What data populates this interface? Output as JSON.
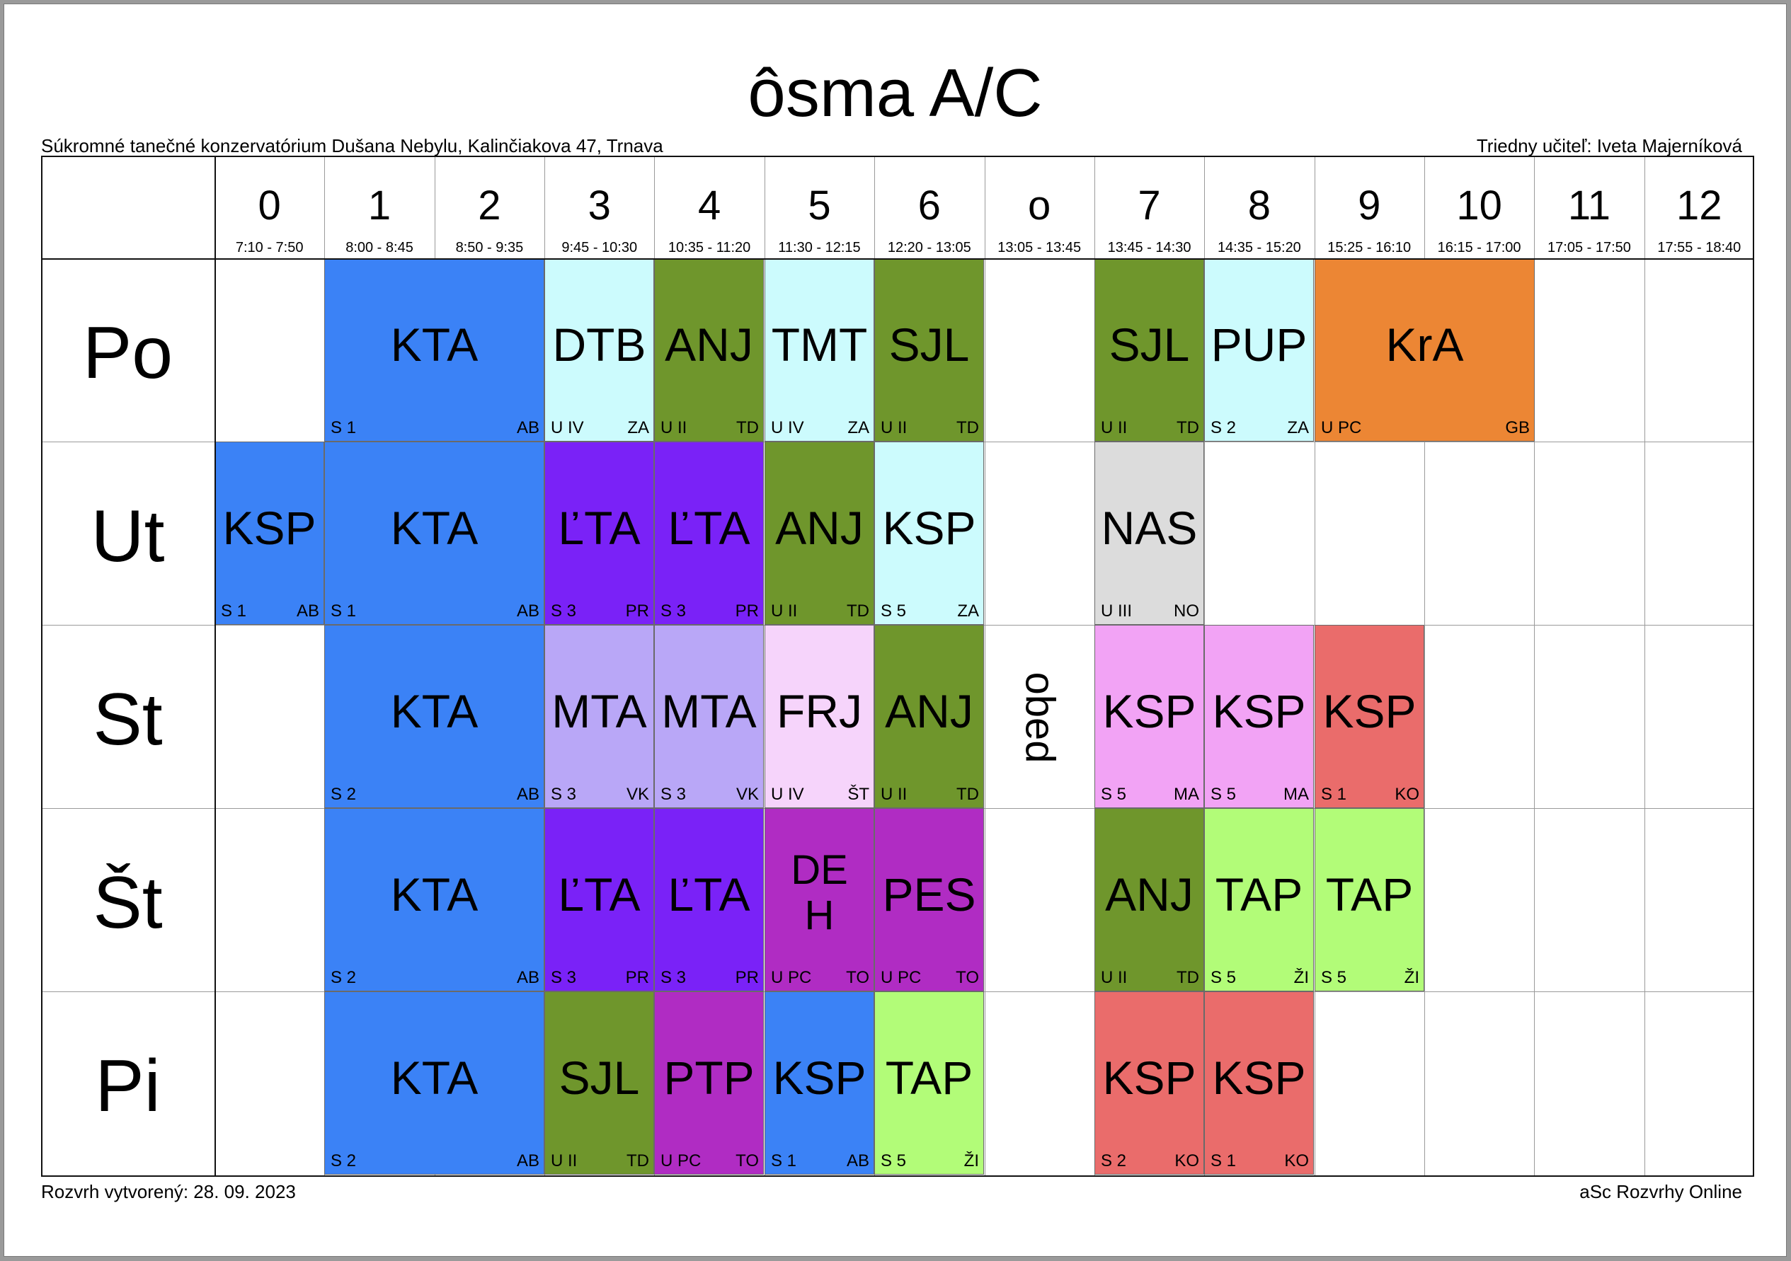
{
  "title": "ôsma A/C",
  "school": "Súkromné tanečné konzervatórium Dušana Nebylu, Kalinčiakova 47, Trnava",
  "homeroom_teacher": "Triedny učiteľ: Iveta Majerníková",
  "footer": {
    "created": "Rozvrh vytvorený: 28. 09. 2023",
    "brand": "aSc Rozvrhy Online"
  },
  "lunch_label": "obed",
  "periods": [
    {
      "num": "0",
      "time": "7:10 - 7:50"
    },
    {
      "num": "1",
      "time": "8:00 - 8:45"
    },
    {
      "num": "2",
      "time": "8:50 - 9:35"
    },
    {
      "num": "3",
      "time": "9:45 - 10:30"
    },
    {
      "num": "4",
      "time": "10:35 - 11:20"
    },
    {
      "num": "5",
      "time": "11:30 - 12:15"
    },
    {
      "num": "6",
      "time": "12:20 - 13:05"
    },
    {
      "num": "o",
      "time": "13:05 - 13:45"
    },
    {
      "num": "7",
      "time": "13:45 - 14:30"
    },
    {
      "num": "8",
      "time": "14:35 - 15:20"
    },
    {
      "num": "9",
      "time": "15:25 - 16:10"
    },
    {
      "num": "10",
      "time": "16:15 - 17:00"
    },
    {
      "num": "11",
      "time": "17:05 - 17:50"
    },
    {
      "num": "12",
      "time": "17:55 - 18:40"
    }
  ],
  "days": [
    "Po",
    "Ut",
    "St",
    "Št",
    "Pi"
  ],
  "colors": {
    "blue": "#3b82f6",
    "cyan": "#ccfbfd",
    "olive": "#6f962c",
    "orange": "#ec8634",
    "violet": "#7a22f7",
    "lavender": "#b9a7f7",
    "pink_light": "#f6d4fb",
    "pink": "#f2a3f5",
    "red": "#ea6c6b",
    "grey": "#dcdcdc",
    "purple": "#b02cc3",
    "green_light": "#b2fc78"
  },
  "lessons": [
    {
      "day": 0,
      "start": 1,
      "span": 2,
      "subject": "KTA",
      "group": "S 1",
      "teacher": "AB",
      "color": "#3b82f6"
    },
    {
      "day": 0,
      "start": 3,
      "span": 1,
      "subject": "DTB",
      "group": "U IV",
      "teacher": "ZA",
      "color": "#ccfbfd"
    },
    {
      "day": 0,
      "start": 4,
      "span": 1,
      "subject": "ANJ",
      "group": "U II",
      "teacher": "TD",
      "color": "#6f962c"
    },
    {
      "day": 0,
      "start": 5,
      "span": 1,
      "subject": "TMT",
      "group": "U IV",
      "teacher": "ZA",
      "color": "#ccfbfd"
    },
    {
      "day": 0,
      "start": 6,
      "span": 1,
      "subject": "SJL",
      "group": "U II",
      "teacher": "TD",
      "color": "#6f962c"
    },
    {
      "day": 0,
      "start": 8,
      "span": 1,
      "subject": "SJL",
      "group": "U II",
      "teacher": "TD",
      "color": "#6f962c"
    },
    {
      "day": 0,
      "start": 9,
      "span": 1,
      "subject": "PUP",
      "group": "S 2",
      "teacher": "ZA",
      "color": "#ccfbfd"
    },
    {
      "day": 0,
      "start": 10,
      "span": 2,
      "subject": "KrA",
      "group": "U PC",
      "teacher": "GB",
      "color": "#ec8634"
    },
    {
      "day": 1,
      "start": 0,
      "span": 1,
      "subject": "KSP",
      "group": "S 1",
      "teacher": "AB",
      "color": "#3b82f6"
    },
    {
      "day": 1,
      "start": 1,
      "span": 2,
      "subject": "KTA",
      "group": "S 1",
      "teacher": "AB",
      "color": "#3b82f6"
    },
    {
      "day": 1,
      "start": 3,
      "span": 1,
      "subject": "ĽTA",
      "group": "S 3",
      "teacher": "PR",
      "color": "#7a22f7"
    },
    {
      "day": 1,
      "start": 4,
      "span": 1,
      "subject": "ĽTA",
      "group": "S 3",
      "teacher": "PR",
      "color": "#7a22f7"
    },
    {
      "day": 1,
      "start": 5,
      "span": 1,
      "subject": "ANJ",
      "group": "U II",
      "teacher": "TD",
      "color": "#6f962c"
    },
    {
      "day": 1,
      "start": 6,
      "span": 1,
      "subject": "KSP",
      "group": "S 5",
      "teacher": "ZA",
      "color": "#ccfbfd"
    },
    {
      "day": 1,
      "start": 8,
      "span": 1,
      "subject": "NAS",
      "group": "U III",
      "teacher": "NO",
      "color": "#dcdcdc"
    },
    {
      "day": 2,
      "start": 1,
      "span": 2,
      "subject": "KTA",
      "group": "S 2",
      "teacher": "AB",
      "color": "#3b82f6"
    },
    {
      "day": 2,
      "start": 3,
      "span": 1,
      "subject": "MTA",
      "group": "S 3",
      "teacher": "VK",
      "color": "#b9a7f7"
    },
    {
      "day": 2,
      "start": 4,
      "span": 1,
      "subject": "MTA",
      "group": "S 3",
      "teacher": "VK",
      "color": "#b9a7f7"
    },
    {
      "day": 2,
      "start": 5,
      "span": 1,
      "subject": "FRJ",
      "group": "U IV",
      "teacher": "ŠT",
      "color": "#f6d4fb"
    },
    {
      "day": 2,
      "start": 6,
      "span": 1,
      "subject": "ANJ",
      "group": "U II",
      "teacher": "TD",
      "color": "#6f962c"
    },
    {
      "day": 2,
      "start": 8,
      "span": 1,
      "subject": "KSP",
      "group": "S 5",
      "teacher": "MA",
      "color": "#f2a3f5"
    },
    {
      "day": 2,
      "start": 9,
      "span": 1,
      "subject": "KSP",
      "group": "S 5",
      "teacher": "MA",
      "color": "#f2a3f5"
    },
    {
      "day": 2,
      "start": 10,
      "span": 1,
      "subject": "KSP",
      "group": "S 1",
      "teacher": "KO",
      "color": "#ea6c6b"
    },
    {
      "day": 3,
      "start": 1,
      "span": 2,
      "subject": "KTA",
      "group": "S 2",
      "teacher": "AB",
      "color": "#3b82f6"
    },
    {
      "day": 3,
      "start": 3,
      "span": 1,
      "subject": "ĽTA",
      "group": "S 3",
      "teacher": "PR",
      "color": "#7a22f7"
    },
    {
      "day": 3,
      "start": 4,
      "span": 1,
      "subject": "ĽTA",
      "group": "S 3",
      "teacher": "PR",
      "color": "#7a22f7"
    },
    {
      "day": 3,
      "start": 5,
      "span": 1,
      "subject": "DEH",
      "lines": [
        "DE",
        "H"
      ],
      "group": "U PC",
      "teacher": "TO",
      "color": "#b02cc3"
    },
    {
      "day": 3,
      "start": 6,
      "span": 1,
      "subject": "PES",
      "group": "U PC",
      "teacher": "TO",
      "color": "#b02cc3"
    },
    {
      "day": 3,
      "start": 8,
      "span": 1,
      "subject": "ANJ",
      "group": "U II",
      "teacher": "TD",
      "color": "#6f962c"
    },
    {
      "day": 3,
      "start": 9,
      "span": 1,
      "subject": "TAP",
      "group": "S 5",
      "teacher": "ŽI",
      "color": "#b2fc78"
    },
    {
      "day": 3,
      "start": 10,
      "span": 1,
      "subject": "TAP",
      "group": "S 5",
      "teacher": "ŽI",
      "color": "#b2fc78"
    },
    {
      "day": 4,
      "start": 1,
      "span": 2,
      "subject": "KTA",
      "group": "S 2",
      "teacher": "AB",
      "color": "#3b82f6"
    },
    {
      "day": 4,
      "start": 3,
      "span": 1,
      "subject": "SJL",
      "group": "U II",
      "teacher": "TD",
      "color": "#6f962c"
    },
    {
      "day": 4,
      "start": 4,
      "span": 1,
      "subject": "PTP",
      "group": "U PC",
      "teacher": "TO",
      "color": "#b02cc3"
    },
    {
      "day": 4,
      "start": 5,
      "span": 1,
      "subject": "KSP",
      "group": "S 1",
      "teacher": "AB",
      "color": "#3b82f6"
    },
    {
      "day": 4,
      "start": 6,
      "span": 1,
      "subject": "TAP",
      "group": "S 5",
      "teacher": "ŽI",
      "color": "#b2fc78"
    },
    {
      "day": 4,
      "start": 8,
      "span": 1,
      "subject": "KSP",
      "group": "S 2",
      "teacher": "KO",
      "color": "#ea6c6b"
    },
    {
      "day": 4,
      "start": 9,
      "span": 1,
      "subject": "KSP",
      "group": "S 1",
      "teacher": "KO",
      "color": "#ea6c6b"
    }
  ]
}
